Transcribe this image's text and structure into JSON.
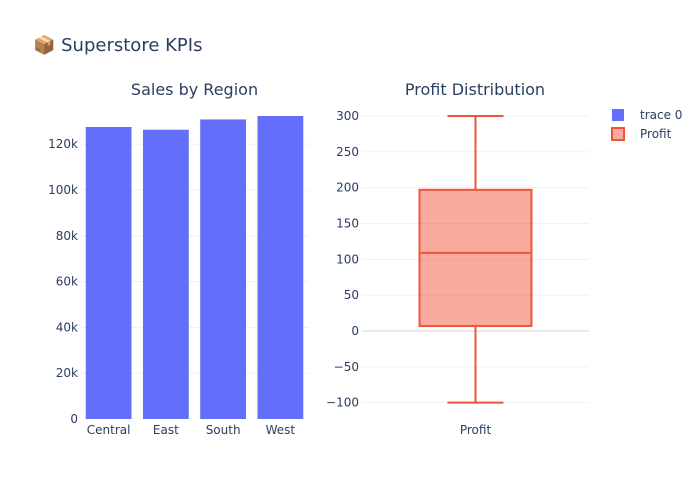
{
  "title": "📦 Superstore KPIs",
  "chart_data": [
    {
      "type": "bar",
      "title": "Sales by Region",
      "categories": [
        "Central",
        "East",
        "South",
        "West"
      ],
      "values": [
        127500,
        126300,
        130800,
        132300
      ],
      "ylim": [
        0,
        132300
      ],
      "yticks": [
        0,
        20000,
        40000,
        60000,
        80000,
        100000,
        120000
      ],
      "ytick_labels": [
        "0",
        "20k",
        "40k",
        "60k",
        "80k",
        "100k",
        "120k"
      ],
      "series_name": "trace 0",
      "color": "#636efa",
      "grid": true
    },
    {
      "type": "box",
      "title": "Profit Distribution",
      "category": "Profit",
      "series_name": "Profit",
      "min": -100,
      "q1": 7,
      "median": 109,
      "q3": 197,
      "max": 300,
      "ylim": [
        -110,
        310
      ],
      "yticks": [
        -100,
        -50,
        0,
        50,
        100,
        150,
        200,
        250,
        300
      ],
      "ytick_labels": [
        "−100",
        "−50",
        "0",
        "50",
        "100",
        "150",
        "200",
        "250",
        "300"
      ],
      "line_color": "#ef553b",
      "fill_color": "#ef553b",
      "grid": true
    }
  ],
  "legend": {
    "placement": "top-right",
    "items": [
      {
        "label": "trace 0",
        "color": "#636efa",
        "kind": "bar"
      },
      {
        "label": "Profit",
        "color": "#ef553b",
        "kind": "box"
      }
    ]
  }
}
